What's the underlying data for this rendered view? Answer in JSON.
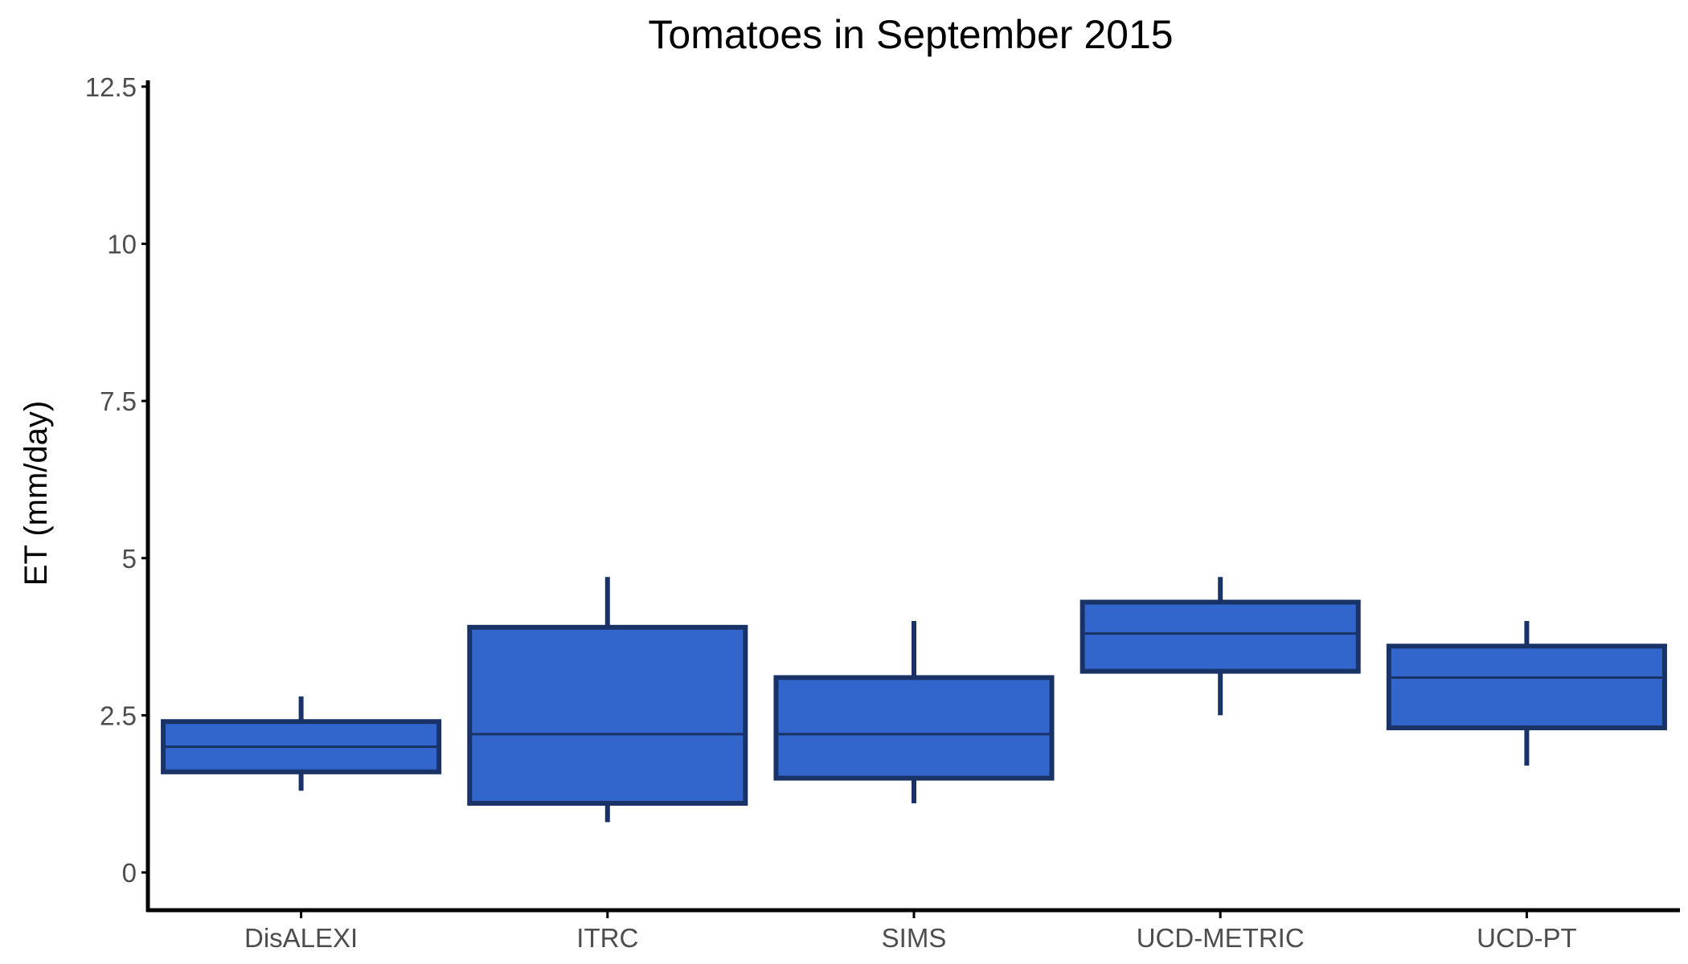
{
  "chart_data": {
    "type": "box",
    "title": "Tomatoes in September 2015",
    "xlabel": "",
    "ylabel": "ET (mm/day)",
    "ylim": [
      -0.6,
      12.6
    ],
    "yticks": [
      0,
      2.5,
      5,
      7.5,
      10,
      12.5
    ],
    "ytick_labels": [
      "0",
      "2.5",
      "5",
      "7.5",
      "10",
      "12.5"
    ],
    "categories": [
      "DisALEXI",
      "ITRC",
      "SIMS",
      "UCD-METRIC",
      "UCD-PT"
    ],
    "boxes": [
      {
        "category": "DisALEXI",
        "whisker_low": 1.3,
        "q1": 1.6,
        "median": 2.0,
        "q3": 2.4,
        "whisker_high": 2.8
      },
      {
        "category": "ITRC",
        "whisker_low": 0.8,
        "q1": 1.1,
        "median": 2.2,
        "q3": 3.9,
        "whisker_high": 4.7
      },
      {
        "category": "SIMS",
        "whisker_low": 1.1,
        "q1": 1.5,
        "median": 2.2,
        "q3": 3.1,
        "whisker_high": 4.0
      },
      {
        "category": "UCD-METRIC",
        "whisker_low": 2.5,
        "q1": 3.2,
        "median": 3.8,
        "q3": 4.3,
        "whisker_high": 4.7
      },
      {
        "category": "UCD-PT",
        "whisker_low": 1.7,
        "q1": 2.3,
        "median": 3.1,
        "q3": 3.6,
        "whisker_high": 4.0
      }
    ],
    "grid": false,
    "legend": "none",
    "colors": {
      "box_fill": "#3366cc",
      "box_outline": "#1a3366",
      "axis": "#000000",
      "tick_text": "#4d4d4d"
    }
  }
}
